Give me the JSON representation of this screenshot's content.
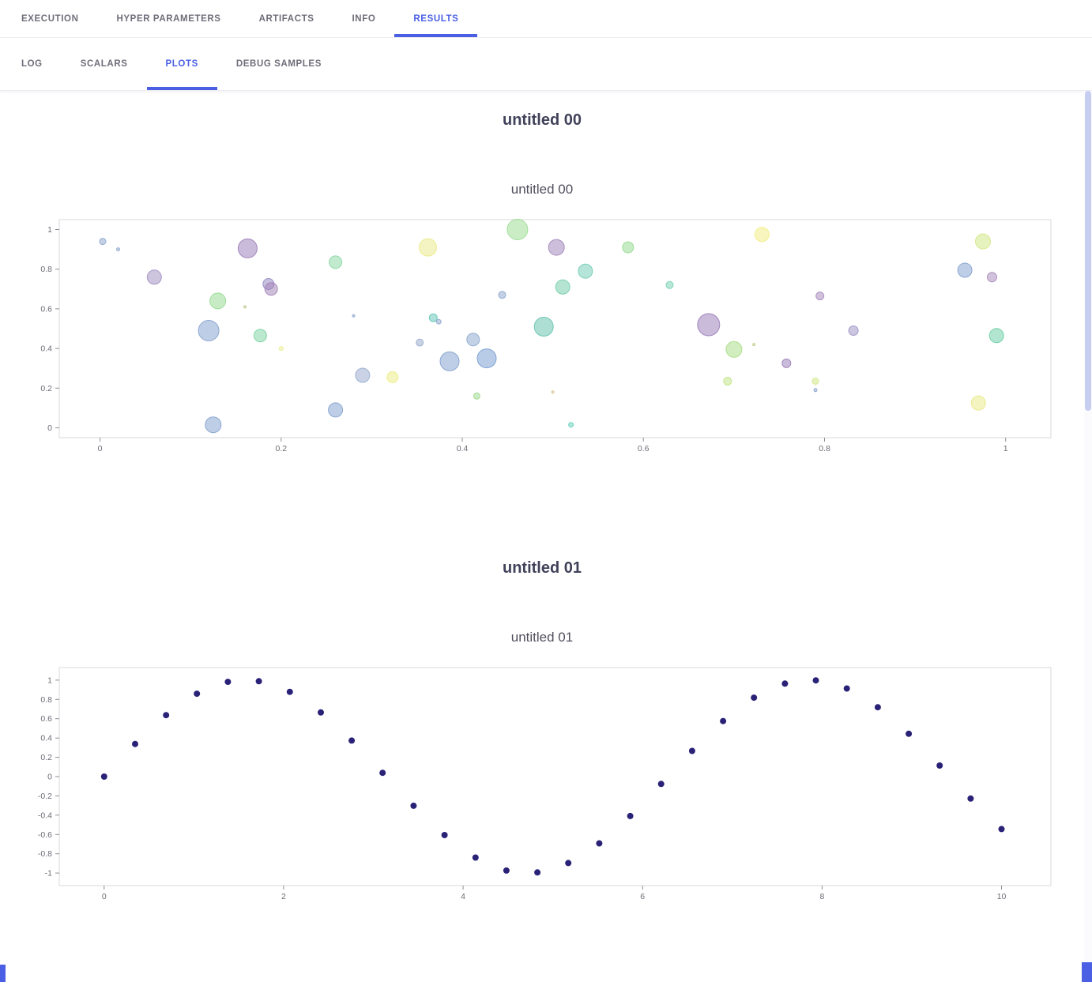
{
  "accent_color": "#4a5fe4",
  "tabs": {
    "primary": [
      {
        "label": "EXECUTION",
        "active": false
      },
      {
        "label": "HYPER PARAMETERS",
        "active": false
      },
      {
        "label": "ARTIFACTS",
        "active": false
      },
      {
        "label": "INFO",
        "active": false
      },
      {
        "label": "RESULTS",
        "active": true
      }
    ],
    "secondary": [
      {
        "label": "LOG",
        "active": false
      },
      {
        "label": "SCALARS",
        "active": false
      },
      {
        "label": "PLOTS",
        "active": true
      },
      {
        "label": "DEBUG SAMPLES",
        "active": false
      }
    ]
  },
  "plots": [
    {
      "header": "untitled 00"
    },
    {
      "header": "untitled 01"
    }
  ],
  "chart_data": [
    {
      "type": "scatter",
      "title": "untitled 00",
      "xlabel": "",
      "ylabel": "",
      "xlim": [
        -0.045,
        1.05
      ],
      "ylim": [
        -0.05,
        1.05
      ],
      "xticks": [
        0,
        0.2,
        0.4,
        0.6,
        0.8,
        1
      ],
      "yticks": [
        0,
        0.2,
        0.4,
        0.6,
        0.8,
        1
      ],
      "grid": false,
      "legend": "none",
      "marker_opacity": 0.5,
      "points": [
        {
          "x": 0.003,
          "y": 0.94,
          "r": 4,
          "color": "#8aa3cc"
        },
        {
          "x": 0.02,
          "y": 0.9,
          "r": 2,
          "color": "#8aa3cc"
        },
        {
          "x": 0.06,
          "y": 0.76,
          "r": 9,
          "color": "#9c8abe"
        },
        {
          "x": 0.12,
          "y": 0.49,
          "r": 13,
          "color": "#7e9dcd"
        },
        {
          "x": 0.13,
          "y": 0.64,
          "r": 10,
          "color": "#90d98b"
        },
        {
          "x": 0.125,
          "y": 0.015,
          "r": 10,
          "color": "#7e9dcd"
        },
        {
          "x": 0.163,
          "y": 0.905,
          "r": 12,
          "color": "#9678b6"
        },
        {
          "x": 0.16,
          "y": 0.61,
          "r": 1.5,
          "color": "#b9c98a"
        },
        {
          "x": 0.186,
          "y": 0.725,
          "r": 7,
          "color": "#9186c4"
        },
        {
          "x": 0.189,
          "y": 0.7,
          "r": 8,
          "color": "#a07db4"
        },
        {
          "x": 0.177,
          "y": 0.465,
          "r": 8,
          "color": "#78d19e"
        },
        {
          "x": 0.2,
          "y": 0.4,
          "r": 2.5,
          "color": "#e9ee89"
        },
        {
          "x": 0.26,
          "y": 0.835,
          "r": 8,
          "color": "#83d69e"
        },
        {
          "x": 0.26,
          "y": 0.09,
          "r": 9,
          "color": "#7e9dcd"
        },
        {
          "x": 0.28,
          "y": 0.565,
          "r": 1.5,
          "color": "#8aa3cc"
        },
        {
          "x": 0.29,
          "y": 0.265,
          "r": 9,
          "color": "#93a8cb"
        },
        {
          "x": 0.323,
          "y": 0.255,
          "r": 7,
          "color": "#ecec80"
        },
        {
          "x": 0.353,
          "y": 0.43,
          "r": 4.5,
          "color": "#93a8cb"
        },
        {
          "x": 0.362,
          "y": 0.91,
          "r": 11,
          "color": "#e9e985"
        },
        {
          "x": 0.368,
          "y": 0.555,
          "r": 5,
          "color": "#5ec4b4"
        },
        {
          "x": 0.374,
          "y": 0.535,
          "r": 3,
          "color": "#8aa3cc"
        },
        {
          "x": 0.386,
          "y": 0.335,
          "r": 12,
          "color": "#7e9dcd"
        },
        {
          "x": 0.412,
          "y": 0.445,
          "r": 8,
          "color": "#87a5cd"
        },
        {
          "x": 0.416,
          "y": 0.16,
          "r": 4,
          "color": "#9bd98a"
        },
        {
          "x": 0.427,
          "y": 0.35,
          "r": 12,
          "color": "#7299cf"
        },
        {
          "x": 0.444,
          "y": 0.67,
          "r": 4.5,
          "color": "#8aa3cc"
        },
        {
          "x": 0.461,
          "y": 1.0,
          "r": 13,
          "color": "#97dc8e"
        },
        {
          "x": 0.49,
          "y": 0.51,
          "r": 12,
          "color": "#5ec0ac"
        },
        {
          "x": 0.504,
          "y": 0.91,
          "r": 10,
          "color": "#9c7fb8"
        },
        {
          "x": 0.5,
          "y": 0.18,
          "r": 1.5,
          "color": "#d9c68e"
        },
        {
          "x": 0.511,
          "y": 0.71,
          "r": 9,
          "color": "#6bcba6"
        },
        {
          "x": 0.52,
          "y": 0.015,
          "r": 3,
          "color": "#5ecfb8"
        },
        {
          "x": 0.536,
          "y": 0.79,
          "r": 9,
          "color": "#6cc9b2"
        },
        {
          "x": 0.583,
          "y": 0.91,
          "r": 7,
          "color": "#90d98b"
        },
        {
          "x": 0.629,
          "y": 0.72,
          "r": 4.5,
          "color": "#6fd0b0"
        },
        {
          "x": 0.672,
          "y": 0.52,
          "r": 14,
          "color": "#9678b6"
        },
        {
          "x": 0.7,
          "y": 0.395,
          "r": 10,
          "color": "#a5dc80"
        },
        {
          "x": 0.693,
          "y": 0.235,
          "r": 5,
          "color": "#bfe383"
        },
        {
          "x": 0.722,
          "y": 0.42,
          "r": 1.5,
          "color": "#c3cb85"
        },
        {
          "x": 0.731,
          "y": 0.975,
          "r": 9,
          "color": "#f2ec7d"
        },
        {
          "x": 0.758,
          "y": 0.325,
          "r": 5.5,
          "color": "#9678b6"
        },
        {
          "x": 0.795,
          "y": 0.665,
          "r": 5,
          "color": "#a383b8"
        },
        {
          "x": 0.79,
          "y": 0.235,
          "r": 4,
          "color": "#cfe77f"
        },
        {
          "x": 0.79,
          "y": 0.19,
          "r": 2,
          "color": "#8aa3cc"
        },
        {
          "x": 0.832,
          "y": 0.49,
          "r": 6,
          "color": "#9a8ec4"
        },
        {
          "x": 0.955,
          "y": 0.795,
          "r": 9,
          "color": "#7e9dcd"
        },
        {
          "x": 0.975,
          "y": 0.94,
          "r": 9.5,
          "color": "#cfe77f"
        },
        {
          "x": 0.985,
          "y": 0.76,
          "r": 6,
          "color": "#a383b8"
        },
        {
          "x": 0.99,
          "y": 0.465,
          "r": 9,
          "color": "#66cba2"
        },
        {
          "x": 0.97,
          "y": 0.125,
          "r": 9,
          "color": "#e7e982"
        }
      ]
    },
    {
      "type": "scatter",
      "title": "untitled 01",
      "xlabel": "",
      "ylabel": "",
      "xlim": [
        -0.5,
        10.55
      ],
      "ylim": [
        -1.13,
        1.13
      ],
      "xticks": [
        0,
        2,
        4,
        6,
        8,
        10
      ],
      "yticks": [
        -1,
        -0.8,
        -0.6,
        -0.4,
        -0.2,
        0,
        0.2,
        0.4,
        0.6,
        0.8,
        1
      ],
      "grid": false,
      "legend": "none",
      "marker_color": "#2a2277",
      "marker_radius": 4,
      "marker_opacity": 1,
      "x": [
        0,
        0.345,
        0.69,
        1.034,
        1.379,
        1.724,
        2.069,
        2.414,
        2.759,
        3.103,
        3.448,
        3.793,
        4.138,
        4.483,
        4.828,
        5.172,
        5.517,
        5.862,
        6.207,
        6.552,
        6.897,
        7.241,
        7.586,
        7.931,
        8.276,
        8.621,
        8.966,
        9.31,
        9.655,
        10
      ],
      "y": [
        0,
        0.338,
        0.637,
        0.859,
        0.982,
        0.988,
        0.879,
        0.665,
        0.373,
        0.039,
        -0.302,
        -0.606,
        -0.839,
        -0.974,
        -0.993,
        -0.896,
        -0.692,
        -0.409,
        -0.076,
        0.266,
        0.576,
        0.818,
        0.964,
        0.997,
        0.913,
        0.719,
        0.444,
        0.115,
        -0.228,
        -0.544
      ]
    }
  ]
}
